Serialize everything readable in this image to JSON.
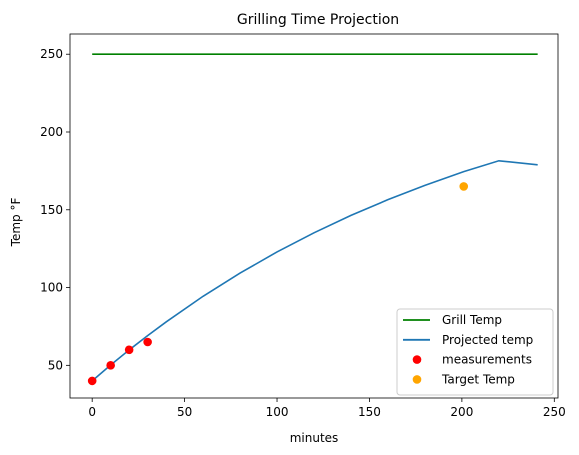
{
  "chart_data": {
    "type": "line",
    "title": "Grilling Time Projection",
    "xlabel": "minutes",
    "ylabel": "Temp °F",
    "xlim": [
      -12,
      252
    ],
    "ylim": [
      29,
      263
    ],
    "xticks": [
      0,
      50,
      100,
      150,
      200,
      250
    ],
    "yticks": [
      50,
      100,
      150,
      200,
      250
    ],
    "grid": false,
    "legend_position": "lower right",
    "series": [
      {
        "name": "Grill Temp",
        "kind": "line",
        "color": "#008000",
        "x": [
          0,
          241
        ],
        "y": [
          250,
          250
        ]
      },
      {
        "name": "Projected temp",
        "kind": "line",
        "color": "#1f77b4",
        "x": [
          0,
          10,
          20,
          30,
          40,
          60,
          80,
          100,
          120,
          140,
          160,
          180,
          201,
          220,
          241
        ],
        "y": [
          40,
          50.2,
          59.9,
          69.1,
          77.9,
          94.4,
          109.3,
          122.9,
          135.2,
          146.4,
          156.5,
          165.7,
          174.5,
          181.5,
          178.9
        ]
      },
      {
        "name": "measurements",
        "kind": "scatter",
        "color": "#ff0000",
        "x": [
          0,
          10,
          20,
          30
        ],
        "y": [
          40,
          50,
          60,
          65
        ]
      },
      {
        "name": "Target Temp",
        "kind": "scatter",
        "color": "#ffa500",
        "x": [
          201
        ],
        "y": [
          165
        ]
      }
    ]
  }
}
